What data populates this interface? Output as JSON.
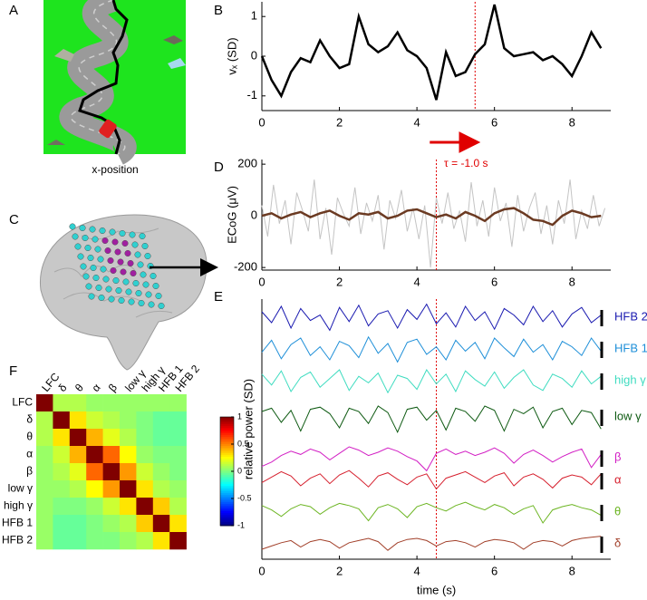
{
  "panel_labels": [
    "A",
    "B",
    "C",
    "D",
    "E",
    "F"
  ],
  "game": {
    "caption": "x-position"
  },
  "chart_data": [
    {
      "type": "line",
      "ylabel": "vₓ (SD)",
      "annotation": "τ = -1.0 s",
      "vline": 5.5,
      "color": "#000000",
      "xlim": [
        0,
        9
      ],
      "xticks": [
        0,
        2,
        4,
        6,
        8
      ],
      "ylim": [
        -1.37,
        1.37
      ],
      "yticks": [
        -1,
        0,
        1
      ],
      "x": [
        0,
        0.25,
        0.5,
        0.75,
        1,
        1.25,
        1.5,
        1.75,
        2,
        2.25,
        2.5,
        2.75,
        3,
        3.25,
        3.5,
        3.75,
        4,
        4.25,
        4.5,
        4.75,
        5,
        5.25,
        5.5,
        5.75,
        6,
        6.25,
        6.5,
        6.75,
        7,
        7.25,
        7.5,
        7.75,
        8,
        8.25,
        8.5,
        8.75
      ],
      "values": [
        0,
        -0.6,
        -1.0,
        -0.4,
        -0.05,
        -0.15,
        0.4,
        0.0,
        -0.3,
        -0.2,
        1.0,
        0.3,
        0.1,
        0.25,
        0.6,
        0.15,
        0.0,
        -0.3,
        -1.1,
        0.1,
        -0.5,
        -0.4,
        0.05,
        0.3,
        1.3,
        0.2,
        0.0,
        0.05,
        0.1,
        -0.1,
        0.0,
        -0.2,
        -0.5,
        0.0,
        0.6,
        0.2
      ]
    },
    {
      "type": "line",
      "ylabel": "ECoG (μV)",
      "vline": 4.5,
      "xlim": [
        0,
        9
      ],
      "xticks": [
        0,
        2,
        4,
        6,
        8
      ],
      "ylim": [
        -210,
        218
      ],
      "yticks": [
        -200,
        0,
        200
      ],
      "series": [
        {
          "color": "#c4c4c4",
          "x": [
            0,
            0.15,
            0.3,
            0.45,
            0.6,
            0.75,
            0.9,
            1.05,
            1.2,
            1.35,
            1.5,
            1.65,
            1.8,
            1.95,
            2.1,
            2.25,
            2.4,
            2.55,
            2.7,
            2.85,
            3,
            3.15,
            3.3,
            3.45,
            3.6,
            3.75,
            3.9,
            4.05,
            4.2,
            4.35,
            4.5,
            4.65,
            4.8,
            4.95,
            5.1,
            5.25,
            5.4,
            5.55,
            5.7,
            5.85,
            6,
            6.15,
            6.3,
            6.45,
            6.6,
            6.75,
            6.9,
            7.05,
            7.2,
            7.35,
            7.5,
            7.65,
            7.8,
            7.95,
            8.1,
            8.25,
            8.4,
            8.55,
            8.7,
            8.85
          ],
          "values": [
            40,
            -80,
            120,
            -30,
            60,
            -110,
            90,
            20,
            -60,
            140,
            -90,
            30,
            -150,
            70,
            10,
            -40,
            110,
            -70,
            50,
            -20,
            80,
            -130,
            60,
            -10,
            100,
            -60,
            30,
            -90,
            40,
            -200,
            70,
            -30,
            90,
            -50,
            20,
            -100,
            130,
            -40,
            60,
            -80,
            110,
            -20,
            50,
            -120,
            80,
            -60,
            30,
            90,
            -70,
            40,
            -110,
            60,
            -30,
            140,
            -90,
            20,
            -50,
            80,
            -40,
            30
          ]
        },
        {
          "color": "#6b3a22",
          "x": [
            0,
            0.25,
            0.5,
            0.75,
            1,
            1.25,
            1.5,
            1.75,
            2,
            2.25,
            2.5,
            2.75,
            3,
            3.25,
            3.5,
            3.75,
            4,
            4.25,
            4.5,
            4.75,
            5,
            5.25,
            5.5,
            5.75,
            6,
            6.25,
            6.5,
            6.75,
            7,
            7.25,
            7.5,
            7.75,
            8,
            8.25,
            8.5,
            8.75
          ],
          "values": [
            0,
            10,
            -10,
            5,
            15,
            -5,
            10,
            20,
            0,
            -15,
            10,
            5,
            15,
            -10,
            0,
            20,
            25,
            10,
            -5,
            5,
            -10,
            15,
            0,
            -20,
            10,
            25,
            30,
            10,
            -15,
            -20,
            -35,
            0,
            20,
            10,
            -5,
            0
          ]
        }
      ]
    },
    {
      "type": "stacked-traces",
      "xlabel": "time (s)",
      "ylabel": "relative power (SD)",
      "vline": 4.5,
      "xlim": [
        0,
        9
      ],
      "xticks": [
        0,
        2,
        4,
        6,
        8
      ],
      "x": [
        0,
        0.25,
        0.5,
        0.75,
        1,
        1.25,
        1.5,
        1.75,
        2,
        2.25,
        2.5,
        2.75,
        3,
        3.25,
        3.5,
        3.75,
        4,
        4.25,
        4.5,
        4.75,
        5,
        5.25,
        5.5,
        5.75,
        6,
        6.25,
        6.5,
        6.75,
        7,
        7.25,
        7.5,
        7.75,
        8,
        8.25,
        8.5,
        8.75
      ],
      "series": [
        {
          "name": "HFB 2",
          "color": "#1a1ab0",
          "values": [
            0.5,
            -0.5,
            1,
            -1,
            0.8,
            -0.3,
            0.2,
            -1.2,
            0.9,
            -0.4,
            1.1,
            -0.8,
            0.3,
            0.6,
            -1,
            0.7,
            -0.2,
            1.2,
            -0.6,
            0.4,
            -0.9,
            1,
            -0.3,
            0.5,
            -1.1,
            0.8,
            0.2,
            -0.7,
            1,
            -0.4,
            0.6,
            -0.9,
            0.3,
            0.9,
            -0.5,
            0.2
          ]
        },
        {
          "name": "HFB 1",
          "color": "#1e8fd8",
          "values": [
            -0.3,
            0.8,
            -0.9,
            0.4,
            1,
            -0.6,
            0.2,
            -1,
            0.7,
            0.3,
            -0.8,
            1.1,
            -0.4,
            0.5,
            -1.2,
            0.6,
            0.9,
            -0.5,
            0.2,
            -1,
            0.8,
            -0.2,
            0.6,
            -0.9,
            1,
            0.1,
            -0.7,
            0.9,
            -0.3,
            0.4,
            -1,
            0.7,
            0.2,
            -0.6,
            1,
            -0.2
          ]
        },
        {
          "name": "high γ",
          "color": "#3fdcc0",
          "values": [
            0.6,
            -0.4,
            0.9,
            -1,
            0.3,
            0.8,
            -0.6,
            0.2,
            1,
            -0.9,
            0.4,
            -0.2,
            0.7,
            -1.1,
            0.5,
            0.2,
            -0.8,
            1,
            -0.3,
            0.6,
            -1,
            0.9,
            0.1,
            -0.5,
            0.8,
            -0.7,
            0.3,
            1,
            -0.4,
            -0.9,
            0.6,
            0.2,
            -0.6,
            0.9,
            -0.3,
            0.4
          ]
        },
        {
          "name": "low γ",
          "color": "#0e5a12",
          "values": [
            0.5,
            0.8,
            -0.5,
            0.6,
            -1.3,
            0.7,
            0.9,
            0.3,
            -1,
            0.8,
            0.5,
            -0.6,
            1,
            0.4,
            -1.4,
            0.7,
            0.9,
            -0.3,
            0.6,
            -1.2,
            0.8,
            0.5,
            -0.4,
            1,
            0.6,
            -1.3,
            0.7,
            0.3,
            0.9,
            -1,
            0.5,
            0.8,
            -0.7,
            0.6,
            0.4,
            -1.1
          ]
        },
        {
          "name": "β",
          "color": "#d21fc4",
          "values": [
            -0.8,
            -0.4,
            0.2,
            0.6,
            0.3,
            0.8,
            0.5,
            -0.2,
            0.4,
            1,
            0.7,
            0.2,
            0.5,
            0.9,
            0.6,
            0.1,
            -0.3,
            -1.2,
            0.4,
            0.8,
            0.3,
            0.6,
            0.2,
            0.5,
            0.9,
            0.4,
            -0.5,
            0.3,
            0.7,
            0.2,
            -0.4,
            0.1,
            0.5,
            0.8,
            -0.9,
            0.3
          ]
        },
        {
          "name": "α",
          "color": "#d6202e",
          "values": [
            -0.2,
            0.3,
            0.8,
            0.4,
            -0.5,
            0.2,
            0.6,
            -0.3,
            0.5,
            0.9,
            0.2,
            -0.6,
            0.4,
            0.7,
            0.1,
            -0.4,
            0.3,
            0.6,
            -0.8,
            0.2,
            0.5,
            0.8,
            0.3,
            -0.2,
            0.4,
            0.7,
            -0.5,
            0.3,
            0.6,
            0.1,
            -0.7,
            0.2,
            0.5,
            0.3,
            -0.4,
            0.6
          ]
        },
        {
          "name": "θ",
          "color": "#6cb522",
          "values": [
            0.6,
            0.2,
            -0.4,
            0.3,
            0.7,
            0.5,
            -0.2,
            0.4,
            0.8,
            0.6,
            0.3,
            -0.8,
            0.4,
            0.7,
            0.3,
            -0.5,
            0.5,
            0.8,
            0.4,
            0.1,
            0.6,
            0.9,
            0.5,
            0.2,
            0.7,
            0.4,
            -0.2,
            0.3,
            0.6,
            -1,
            0.2,
            0.5,
            0.7,
            0.4,
            0.2,
            -0.3
          ]
        },
        {
          "name": "δ",
          "color": "#a2402a",
          "values": [
            -0.5,
            -0.2,
            0.1,
            0.3,
            -0.3,
            0.2,
            0.4,
            0.2,
            -0.4,
            0.1,
            0.3,
            0.5,
            0.2,
            -0.6,
            0.1,
            0.4,
            0.5,
            0.3,
            -0.2,
            0.2,
            0.3,
            0.1,
            -0.3,
            0.2,
            0.4,
            0.3,
            0.1,
            -0.5,
            0.1,
            0.3,
            0.2,
            -0.2,
            0.3,
            0.5,
            0.6,
            0.7
          ]
        }
      ]
    },
    {
      "type": "heatmap",
      "categories": [
        "LFC",
        "δ",
        "θ",
        "α",
        "β",
        "low γ",
        "high γ",
        "HFB 1",
        "HFB 2"
      ],
      "matrix": [
        [
          1,
          0.1,
          0.1,
          0.05,
          0.05,
          0.05,
          0.05,
          0.05,
          0.05
        ],
        [
          0.1,
          1,
          0.3,
          0.15,
          0.1,
          0.05,
          0,
          -0.05,
          -0.05
        ],
        [
          0.1,
          0.3,
          1,
          0.4,
          0.2,
          0.1,
          0,
          -0.05,
          -0.05
        ],
        [
          0.05,
          0.15,
          0.4,
          1,
          0.55,
          0.25,
          0.05,
          0,
          0
        ],
        [
          0.05,
          0.1,
          0.2,
          0.55,
          1,
          0.45,
          0.15,
          0.05,
          0
        ],
        [
          0.05,
          0.05,
          0.1,
          0.25,
          0.45,
          1,
          0.3,
          0.1,
          0.05
        ],
        [
          0.05,
          0,
          0,
          0.05,
          0.15,
          0.3,
          1,
          0.35,
          0.1
        ],
        [
          0.05,
          -0.05,
          -0.05,
          0,
          0.05,
          0.1,
          0.35,
          1,
          0.3
        ],
        [
          0.05,
          -0.05,
          -0.05,
          0,
          0,
          0.05,
          0.1,
          0.3,
          1
        ]
      ],
      "clim": [
        -1,
        1
      ],
      "cticks": [
        1,
        0.5,
        0,
        -0.5,
        -1
      ]
    }
  ]
}
